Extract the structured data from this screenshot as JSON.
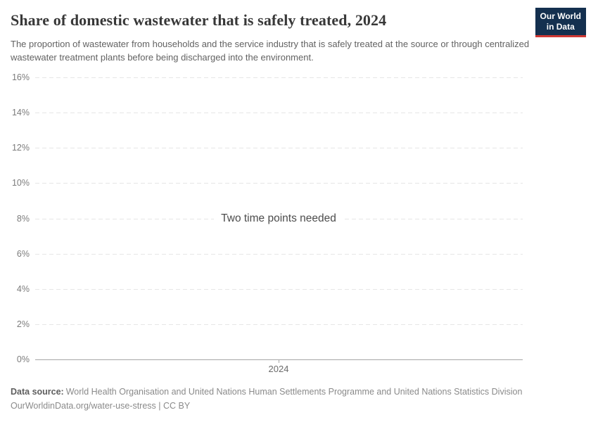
{
  "header": {
    "title": "Share of domestic wastewater that is safely treated, 2024",
    "subtitle": "The proportion of wastewater from households and the service industry that is safely treated at the source or through centralized wastewater treatment plants before being discharged into the environment."
  },
  "logo": {
    "line1": "Our World",
    "line2": "in Data",
    "bg_color": "#14304f",
    "accent_color": "#cf3834"
  },
  "chart_data": {
    "type": "line",
    "title": "Share of domestic wastewater that is safely treated, 2024",
    "series": [],
    "message": "Two time points needed",
    "x_ticks": [
      "2024"
    ],
    "y_ticks": [
      {
        "label": "0%",
        "value": 0
      },
      {
        "label": "2%",
        "value": 2
      },
      {
        "label": "4%",
        "value": 4
      },
      {
        "label": "6%",
        "value": 6
      },
      {
        "label": "8%",
        "value": 8
      },
      {
        "label": "10%",
        "value": 10
      },
      {
        "label": "12%",
        "value": 12
      },
      {
        "label": "14%",
        "value": 14
      },
      {
        "label": "16%",
        "value": 16
      }
    ],
    "ylim": [
      0,
      16
    ],
    "xlabel": "",
    "ylabel": "",
    "grid": true
  },
  "footer": {
    "datasource_label": "Data source:",
    "datasource_text": "World Health Organisation and United Nations Human Settlements Programme and United Nations Statistics Division",
    "license_line": "OurWorldinData.org/water-use-stress | CC BY"
  }
}
